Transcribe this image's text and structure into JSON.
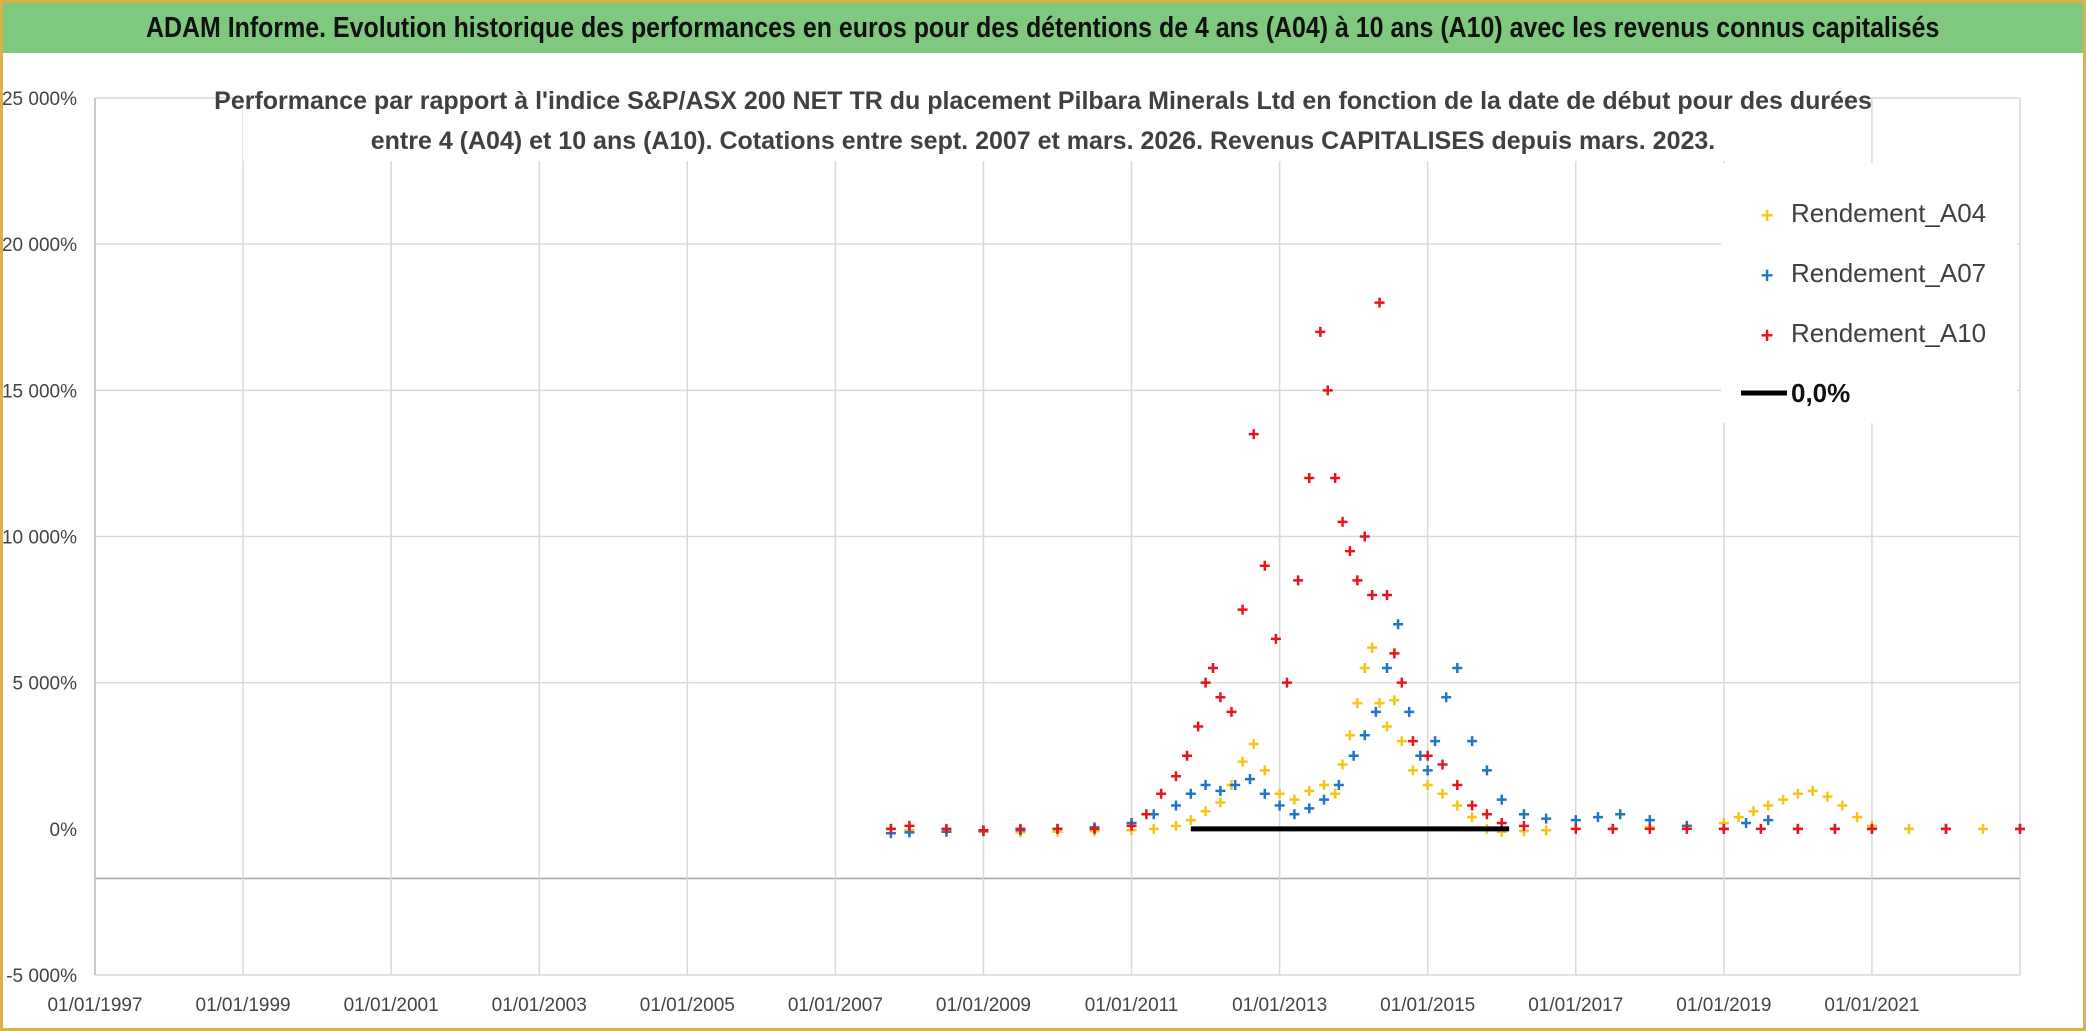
{
  "header": {
    "title": "ADAM Informe. Evolution historique des performances en euros pour des détentions de 4 ans (A04) à 10 ans (A10) avec les revenus connus capitalisés"
  },
  "chart_data": {
    "type": "scatter",
    "title_line1": "Performance par rapport à l'indice S&P/ASX 200 NET TR  du placement Pilbara Minerals Ltd en fonction de la date de début pour des durées",
    "title_line2": "entre 4 (A04) et 10 ans (A10). Cotations entre sept. 2007 et mars. 2026. Revenus CAPITALISES depuis mars. 2023.",
    "xlabel": "",
    "ylabel": "",
    "x_ticks": [
      "01/01/1997",
      "01/01/1999",
      "01/01/2001",
      "01/01/2003",
      "01/01/2005",
      "01/01/2007",
      "01/01/2009",
      "01/01/2011",
      "01/01/2013",
      "01/01/2015",
      "01/01/2017",
      "01/01/2019",
      "01/01/2021"
    ],
    "x_tick_years": [
      1997,
      1999,
      2001,
      2003,
      2005,
      2007,
      2009,
      2011,
      2013,
      2015,
      2017,
      2019,
      2021
    ],
    "xlim_years": [
      1997,
      2023
    ],
    "y_ticks": [
      "25 000%",
      "20 000%",
      "15 000%",
      "10 000%",
      "5 000%",
      "0%",
      "-5 000%"
    ],
    "y_tick_values": [
      25000,
      20000,
      15000,
      10000,
      5000,
      0,
      -5000
    ],
    "ylim": [
      -5000,
      25000
    ],
    "grid": true,
    "legend_position": "top-right",
    "series": [
      {
        "name": "Rendement_A04",
        "color": "#f5c518",
        "marker": "plus",
        "x": [
          2007.75,
          2008.0,
          2008.5,
          2009.0,
          2009.5,
          2010.0,
          2010.5,
          2011.0,
          2011.3,
          2011.6,
          2011.8,
          2012.0,
          2012.2,
          2012.35,
          2012.5,
          2012.65,
          2012.8,
          2013.0,
          2013.2,
          2013.4,
          2013.6,
          2013.75,
          2013.85,
          2013.95,
          2014.05,
          2014.15,
          2014.25,
          2014.35,
          2014.45,
          2014.55,
          2014.65,
          2014.8,
          2015.0,
          2015.2,
          2015.4,
          2015.6,
          2015.8,
          2016.0,
          2016.3,
          2016.6,
          2017.0,
          2017.5,
          2018.0,
          2018.5,
          2019.0,
          2019.2,
          2019.4,
          2019.6,
          2019.8,
          2020.0,
          2020.2,
          2020.4,
          2020.6,
          2020.8,
          2021.0,
          2021.5,
          2022.0,
          2022.5,
          2023.0
        ],
        "y": [
          0,
          -50,
          -80,
          -100,
          -120,
          -100,
          -80,
          -50,
          0,
          100,
          300,
          600,
          900,
          1500,
          2300,
          2900,
          2000,
          1200,
          1000,
          1300,
          1500,
          1200,
          2200,
          3200,
          4300,
          5500,
          6200,
          4300,
          3500,
          4400,
          3000,
          2000,
          1500,
          1200,
          800,
          400,
          0,
          -100,
          -80,
          -50,
          0,
          0,
          50,
          100,
          200,
          400,
          600,
          800,
          1000,
          1200,
          1300,
          1100,
          800,
          400,
          100,
          0,
          0,
          0,
          0
        ]
      },
      {
        "name": "Rendement_A07",
        "color": "#1f77c4",
        "marker": "plus",
        "x": [
          2007.75,
          2008.0,
          2008.5,
          2009.0,
          2009.5,
          2010.0,
          2010.5,
          2011.0,
          2011.3,
          2011.6,
          2011.8,
          2012.0,
          2012.2,
          2012.4,
          2012.6,
          2012.8,
          2013.0,
          2013.2,
          2013.4,
          2013.6,
          2013.8,
          2014.0,
          2014.15,
          2014.3,
          2014.45,
          2014.6,
          2014.75,
          2014.9,
          2015.0,
          2015.1,
          2015.25,
          2015.4,
          2015.6,
          2015.8,
          2016.0,
          2016.3,
          2016.6,
          2017.0,
          2017.3,
          2017.6,
          2018.0,
          2018.5,
          2019.0,
          2019.3,
          2019.6,
          2020.0,
          2020.5,
          2021.0,
          2022.0,
          2023.0
        ],
        "y": [
          -150,
          -120,
          -100,
          -80,
          -50,
          0,
          50,
          200,
          500,
          800,
          1200,
          1500,
          1300,
          1500,
          1700,
          1200,
          800,
          500,
          700,
          1000,
          1500,
          2500,
          3200,
          4000,
          5500,
          7000,
          4000,
          2500,
          2000,
          3000,
          4500,
          5500,
          3000,
          2000,
          1000,
          500,
          350,
          300,
          400,
          500,
          300,
          100,
          0,
          200,
          300,
          0,
          0,
          0,
          0,
          0
        ]
      },
      {
        "name": "Rendement_A10",
        "color": "#e8141c",
        "marker": "plus",
        "x": [
          2007.75,
          2008.0,
          2008.5,
          2009.0,
          2009.5,
          2010.0,
          2010.5,
          2011.0,
          2011.2,
          2011.4,
          2011.6,
          2011.75,
          2011.9,
          2012.0,
          2012.1,
          2012.2,
          2012.35,
          2012.5,
          2012.65,
          2012.8,
          2012.95,
          2013.1,
          2013.25,
          2013.4,
          2013.55,
          2013.65,
          2013.75,
          2013.85,
          2013.95,
          2014.05,
          2014.15,
          2014.25,
          2014.35,
          2014.45,
          2014.55,
          2014.65,
          2014.8,
          2015.0,
          2015.2,
          2015.4,
          2015.6,
          2015.8,
          2016.0,
          2016.3,
          2017.0,
          2017.5,
          2018.0,
          2018.5,
          2019.0,
          2019.5,
          2020.0,
          2020.5,
          2021.0,
          2022.0,
          2023.0
        ],
        "y": [
          0,
          100,
          0,
          -50,
          0,
          0,
          0,
          100,
          500,
          1200,
          1800,
          2500,
          3500,
          5000,
          5500,
          4500,
          4000,
          7500,
          13500,
          9000,
          6500,
          5000,
          8500,
          12000,
          17000,
          15000,
          12000,
          10500,
          9500,
          8500,
          10000,
          8000,
          18000,
          8000,
          6000,
          5000,
          3000,
          2500,
          2200,
          1500,
          800,
          500,
          200,
          100,
          0,
          0,
          0,
          0,
          0,
          0,
          0,
          0,
          0,
          0,
          0
        ]
      },
      {
        "name": "0,0%",
        "color": "#000000",
        "marker": "line",
        "x": [
          2011.8,
          2016.1
        ],
        "y": [
          0,
          0
        ]
      }
    ]
  }
}
